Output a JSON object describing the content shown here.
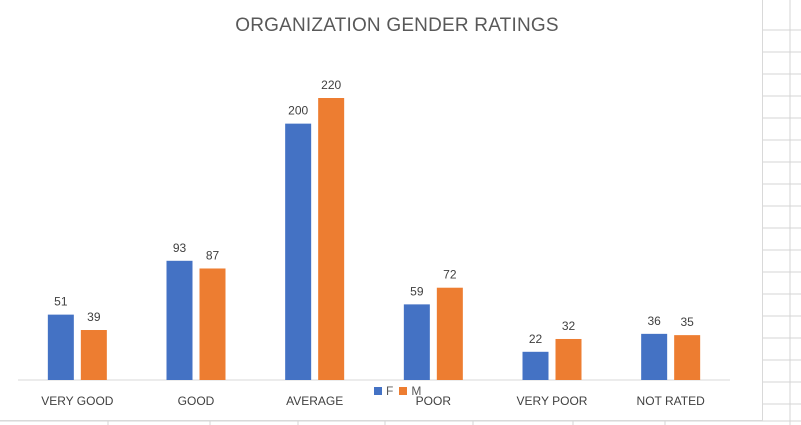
{
  "chart_data": {
    "type": "bar",
    "title": "ORGANIZATION GENDER RATINGS",
    "categories": [
      "VERY GOOD",
      "GOOD",
      "AVERAGE",
      "POOR",
      "VERY POOR",
      "NOT RATED"
    ],
    "series": [
      {
        "name": "F",
        "color": "#4472C4",
        "values": [
          51,
          93,
          200,
          59,
          22,
          36
        ]
      },
      {
        "name": "M",
        "color": "#ED7D31",
        "values": [
          39,
          87,
          220,
          72,
          32,
          35
        ]
      }
    ],
    "ylim": [
      0,
      220
    ],
    "grid": false,
    "legend": "bottom-center",
    "data_labels": true
  }
}
